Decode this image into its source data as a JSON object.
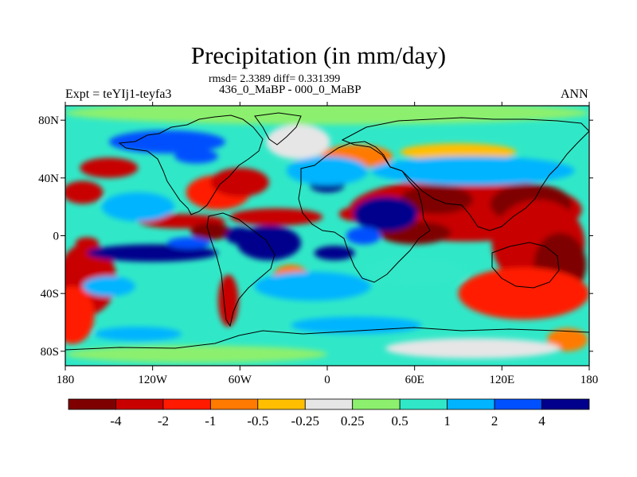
{
  "title": "Precipitation (in mm/day)",
  "stats_line": "rmsd= 2.3389 diff= 0.331399",
  "subtitle": "436_0_MaBP - 000_0_MaBP",
  "left_label": "Expt = teYIj1-teyfa3",
  "right_label": "ANN",
  "map": {
    "lon_range": [
      -180,
      180
    ],
    "lat_range": [
      -90,
      90
    ],
    "x_ticks": [
      {
        "lon": -180,
        "label": "180"
      },
      {
        "lon": -120,
        "label": "120W"
      },
      {
        "lon": -60,
        "label": "60W"
      },
      {
        "lon": 0,
        "label": "0"
      },
      {
        "lon": 60,
        "label": "60E"
      },
      {
        "lon": 120,
        "label": "120E"
      },
      {
        "lon": 180,
        "label": "180"
      }
    ],
    "y_ticks": [
      {
        "lat": 80,
        "label": "80N"
      },
      {
        "lat": 40,
        "label": "40N"
      },
      {
        "lat": 0,
        "label": "0"
      },
      {
        "lat": -40,
        "label": "40S"
      },
      {
        "lat": -80,
        "label": "80S"
      }
    ]
  },
  "colorbar": {
    "colors": [
      "#7f0000",
      "#c80000",
      "#ff1a00",
      "#ff7a00",
      "#ffbf00",
      "#e6e6e6",
      "#8cf06e",
      "#30e8c8",
      "#00b4ff",
      "#0050ff",
      "#00008c"
    ],
    "labels": [
      "-4",
      "-2",
      "-1",
      "-0.5",
      "-0.25",
      "0.25",
      "0.5",
      "1",
      "2",
      "4"
    ]
  },
  "chart_data": {
    "type": "heatmap",
    "title": "Precipitation (in mm/day)",
    "variable": "precipitation difference",
    "units": "mm/day",
    "rmsd": 2.3389,
    "diff": 0.331399,
    "levels": [
      -4,
      -2,
      -1,
      -0.5,
      -0.25,
      0.25,
      0.5,
      1,
      2,
      4
    ],
    "background_level": 0.75,
    "regions": [
      {
        "lon": 95,
        "lat": 18,
        "rx": 80,
        "ry": 22,
        "value": -3.5
      },
      {
        "lon": 140,
        "lat": 22,
        "rx": 28,
        "ry": 14,
        "value": -6
      },
      {
        "lon": 75,
        "lat": 25,
        "rx": 25,
        "ry": 10,
        "value": -5
      },
      {
        "lon": 145,
        "lat": -5,
        "rx": 32,
        "ry": 30,
        "value": -3
      },
      {
        "lon": 160,
        "lat": -20,
        "rx": 18,
        "ry": 22,
        "value": -5
      },
      {
        "lon": 135,
        "lat": -40,
        "rx": 45,
        "ry": 18,
        "value": -1
      },
      {
        "lon": 60,
        "lat": 2,
        "rx": 25,
        "ry": 8,
        "value": -4
      },
      {
        "lon": 20,
        "lat": 15,
        "rx": 12,
        "ry": 5,
        "value": -2
      },
      {
        "lon": -165,
        "lat": -30,
        "rx": 20,
        "ry": 25,
        "value": -3
      },
      {
        "lon": -175,
        "lat": -55,
        "rx": 15,
        "ry": 20,
        "value": -1.5
      },
      {
        "lon": -168,
        "lat": 30,
        "rx": 14,
        "ry": 8,
        "value": -2
      },
      {
        "lon": -150,
        "lat": 47,
        "rx": 20,
        "ry": 7,
        "value": -3
      },
      {
        "lon": -75,
        "lat": 30,
        "rx": 22,
        "ry": 12,
        "value": -1.5
      },
      {
        "lon": -60,
        "lat": 37,
        "rx": 20,
        "ry": 10,
        "value": -3
      },
      {
        "lon": -100,
        "lat": 10,
        "rx": 30,
        "ry": 5,
        "value": -3
      },
      {
        "lon": -80,
        "lat": 3,
        "rx": 14,
        "ry": 6,
        "value": -4
      },
      {
        "lon": -35,
        "lat": 13,
        "rx": 32,
        "ry": 6,
        "value": -2
      },
      {
        "lon": -68,
        "lat": -45,
        "rx": 7,
        "ry": 18,
        "value": -3
      },
      {
        "lon": -25,
        "lat": -28,
        "rx": 12,
        "ry": 8,
        "value": -0.75
      },
      {
        "lon": -165,
        "lat": -5,
        "rx": 8,
        "ry": 4,
        "value": -2
      },
      {
        "lon": 20,
        "lat": 55,
        "rx": 25,
        "ry": 8,
        "value": -0.75
      },
      {
        "lon": 90,
        "lat": 58,
        "rx": 40,
        "ry": 6,
        "value": -0.35
      },
      {
        "lon": -20,
        "lat": 65,
        "rx": 22,
        "ry": 12,
        "value": 0
      },
      {
        "lon": 165,
        "lat": -72,
        "rx": 14,
        "ry": 8,
        "value": -0.75
      },
      {
        "lon": 0,
        "lat": 85,
        "rx": 180,
        "ry": 8,
        "value": 0.35
      },
      {
        "lon": -130,
        "lat": 20,
        "rx": 25,
        "ry": 10,
        "value": 1.5
      },
      {
        "lon": -120,
        "lat": -12,
        "rx": 45,
        "ry": 6,
        "value": 5
      },
      {
        "lon": -95,
        "lat": -5,
        "rx": 15,
        "ry": 4,
        "value": 3
      },
      {
        "lon": -150,
        "lat": -35,
        "rx": 18,
        "ry": 7,
        "value": 1.5
      },
      {
        "lon": -40,
        "lat": -5,
        "rx": 22,
        "ry": 12,
        "value": 5
      },
      {
        "lon": -60,
        "lat": 0,
        "rx": 10,
        "ry": 6,
        "value": 5
      },
      {
        "lon": 40,
        "lat": 15,
        "rx": 22,
        "ry": 12,
        "value": 5
      },
      {
        "lon": 25,
        "lat": 0,
        "rx": 12,
        "ry": 6,
        "value": 3
      },
      {
        "lon": 5,
        "lat": -12,
        "rx": 14,
        "ry": 5,
        "value": 5
      },
      {
        "lon": 0,
        "lat": 35,
        "rx": 12,
        "ry": 5,
        "value": 5
      },
      {
        "lon": 100,
        "lat": 45,
        "rx": 70,
        "ry": 10,
        "value": 1.5
      },
      {
        "lon": 0,
        "lat": 45,
        "rx": 28,
        "ry": 10,
        "value": 1.5
      },
      {
        "lon": -110,
        "lat": 65,
        "rx": 40,
        "ry": 8,
        "value": 2.5
      },
      {
        "lon": -90,
        "lat": 55,
        "rx": 15,
        "ry": 5,
        "value": 3
      },
      {
        "lon": -10,
        "lat": -35,
        "rx": 40,
        "ry": 10,
        "value": 1.5
      },
      {
        "lon": 60,
        "lat": -25,
        "rx": 35,
        "ry": 10,
        "value": 0.75
      },
      {
        "lon": 20,
        "lat": -62,
        "rx": 45,
        "ry": 6,
        "value": 1.5
      },
      {
        "lon": -130,
        "lat": -68,
        "rx": 30,
        "ry": 5,
        "value": 1.5
      },
      {
        "lon": -90,
        "lat": -82,
        "rx": 90,
        "ry": 6,
        "value": 0.35
      },
      {
        "lon": 100,
        "lat": -78,
        "rx": 60,
        "ry": 7,
        "value": 0
      }
    ]
  }
}
